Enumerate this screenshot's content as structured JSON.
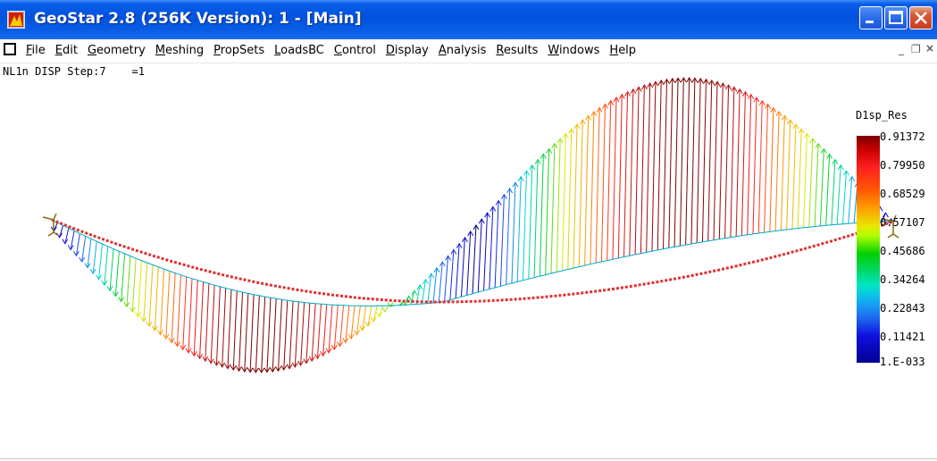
{
  "window": {
    "title": "GeoStar 2.8 (256K Version): 1 - [Main]",
    "title_bar_color": "#0a5fe6",
    "close_button_color": "#d85a38"
  },
  "menubar": {
    "items": [
      "File",
      "Edit",
      "Geometry",
      "Meshing",
      "PropSets",
      "LoadsBC",
      "Control",
      "Display",
      "Analysis",
      "Results",
      "Windows",
      "Help"
    ],
    "mdi_minimize": "_",
    "mdi_restore": "❐",
    "mdi_close": "×"
  },
  "status": {
    "text": "NL1n DISP Step:7    =1"
  },
  "legend": {
    "title": "D1sp_Res",
    "labels": [
      "0.91372",
      "0.79950",
      "0.68529",
      "0.57107",
      "0.45686",
      "0.34264",
      "0.22843",
      "0.11421",
      "1.E-033"
    ],
    "colors": [
      "#7a0000",
      "#ff2020",
      "#ff9f00",
      "#e8e800",
      "#00d000",
      "#00e6c8",
      "#10b4f0",
      "#1010e0",
      "#000090"
    ]
  },
  "plot": {
    "deformed_shape_color": "#00a8c8",
    "original_shape_color": "#e03030"
  }
}
